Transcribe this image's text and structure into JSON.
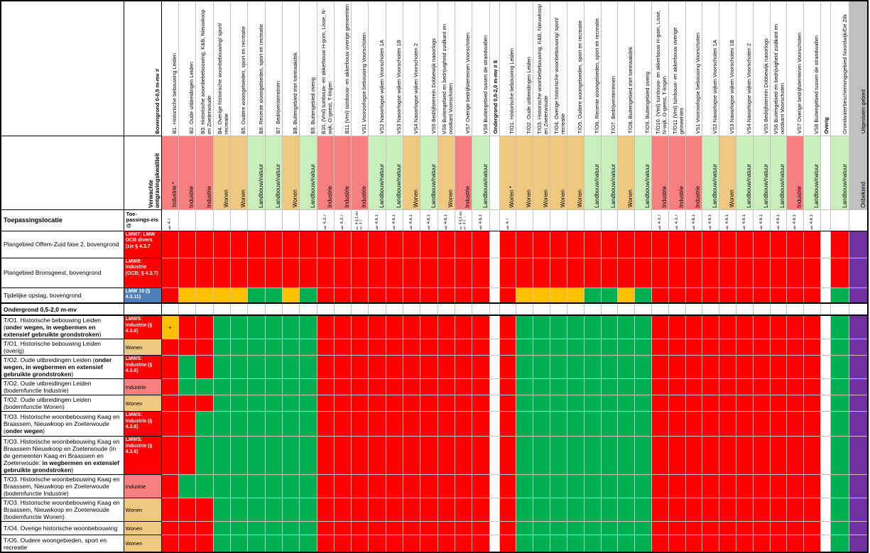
{
  "table": {
    "corner_label": "Toepassingslocatie",
    "eis_label": "Toe-passings-eis @",
    "bovengrond_header": "Bovengrond 0-0,5 m-mv #",
    "quality_header": "Verwachte ontgravingskwaliteit",
    "ondergrond_header": "Ondergrond 0,5-2,0 m-mv # $",
    "overig_header": "Overig"
  },
  "colors": {
    "R": "#FF0000",
    "G": "#00B050",
    "O": "#FFC000",
    "P": "#7030A0",
    "B": "#4E7FBA",
    "i": "#F5807F",
    "w": "#EFC880",
    "n": "#C9EFBC",
    "u": "#BFBFBF"
  },
  "columns": {
    "bovengrond": [
      {
        "l": "B1. Historische bebouwing Leiden",
        "qt": "Industrie *",
        "q": "i",
        "e": "§ 4.7"
      },
      {
        "l": "B2. Oude uitbreidingen Leiden",
        "qt": "Industrie",
        "q": "i",
        "e": ""
      },
      {
        "l": "B3. Historische woonbebebouwing, K&B, Nieuwkoop en Zoeterwoude",
        "qt": "Industrie",
        "q": "i",
        "e": ""
      },
      {
        "l": "B4. Overige historische woonbebouwing/ sport/ recreatie",
        "qt": "Wonen",
        "q": "w",
        "e": ""
      },
      {
        "l": "B5. Oudere woongebieden, sport en recreatie",
        "qt": "Wonen",
        "q": "w",
        "e": ""
      },
      {
        "l": "B6. Recente woongebieden, sport en recreatie",
        "qt": "Landbouw/natuur",
        "q": "n",
        "e": ""
      },
      {
        "l": "B7. Bedrijventerreinen",
        "qt": "Landbouw/natuur",
        "q": "n",
        "e": ""
      },
      {
        "l": "B8. Buitengebied met toemaakdek",
        "qt": "Wonen",
        "q": "w",
        "e": ""
      },
      {
        "l": "B9. Buitengebied overig",
        "qt": "Landbouw/natuur",
        "q": "n",
        "e": ""
      },
      {
        "l": "B10. (Vml) tuinbouw- en akkerbouw H-gom, Lisse, N-wijk, O-geest, T-lingen",
        "qt": "Industrie",
        "q": "i",
        "e": "§ 4.3.7"
      },
      {
        "l": "B11 (Vml) tuinbouw- en akkerbouw overige gemeenten",
        "qt": "Industrie",
        "q": "i",
        "e": "§ 4.3.7"
      },
      {
        "l": "VS1 Vooroorlogse bebouwing Voorschoten",
        "qt": "Industrie",
        "q": "i",
        "e": "§ 4.6.1 en|§ 4.7"
      },
      {
        "l": "VS2 Naoorlogse wijken Voorschoten 1A",
        "qt": "Landbouw/natuur",
        "q": "n",
        "e": "§ 4.6.1"
      },
      {
        "l": "VS3 Naoorlogse wijken Voorschoten 1B",
        "qt": "Landbouw/natuur",
        "q": "n",
        "e": "§ 4.6.1"
      },
      {
        "l": "VS4 Naoorlogse wijken Voorschoten 2",
        "qt": "Wonen",
        "q": "w",
        "e": "§ 4.6.1"
      },
      {
        "l": "VS5 Bedrijfsterrein Dobbewijk naoorlogs",
        "qt": "Landbouw/natuur",
        "q": "n",
        "e": "§ 4.6.1"
      },
      {
        "l": "VS6 Buitengebied en bedrijvigheid zuidkant en oostkant Voorschoten",
        "qt": "Wonen",
        "q": "w",
        "e": "§ 4.6.1"
      },
      {
        "l": "VS7 Overige bedrijfsterreinen Voorschoten",
        "qt": "Industrie",
        "q": "i",
        "e": "§ 4.6.1 en|§ 4.7"
      },
      {
        "l": "VS8 Buitengebied tussen de strandwallen",
        "qt": "Landbouw/natuur",
        "q": "n",
        "e": "§ 4.6.1"
      }
    ],
    "ondergrond": [
      {
        "l": "T/O1. Historische bebouwing Leiden",
        "qt": "Wonen *",
        "q": "w",
        "e": "§ 4.7"
      },
      {
        "l": "T/O2. Oude uitbreidingen Leiden",
        "qt": "Wonen",
        "q": "w",
        "e": ""
      },
      {
        "l": "T/O3. Historische woonbebebouwing, K&B, Nieuwkoop en Zoeterwoude",
        "qt": "Wonen",
        "q": "w",
        "e": ""
      },
      {
        "l": "T/O4. Overige historische woonbebouwing/ sport/ recreatie",
        "qt": "Wonen",
        "q": "w",
        "e": ""
      },
      {
        "l": "T/O5. Oudere woongebieden, sport en recreatie",
        "qt": "Wonen",
        "q": "w",
        "e": ""
      },
      {
        "l": "T/O6. Recente woongebieden, sport en recreatie",
        "qt": "Landbouw/natuur",
        "q": "n",
        "e": ""
      },
      {
        "l": "T/O7. Bedrijventerreinen",
        "qt": "Landbouw/natuur",
        "q": "n",
        "e": ""
      },
      {
        "l": "T/O8. Buitengebied met toemaakdek",
        "qt": "Wonen",
        "q": "w",
        "e": ""
      },
      {
        "l": "T/O9. Buitengebied overig",
        "qt": "Landbouw/natuur",
        "q": "n",
        "e": ""
      },
      {
        "l": "T/O10. (Vml) tuinbouw- en akkerbouw H-gom, Lisse, N-wijk, O-geest, T-lingen",
        "qt": "Industrie",
        "q": "i",
        "e": "§ 4.3.7"
      },
      {
        "l": "T/O11 (Vml) tuinbouw- en akkerbouw overige gemeenten",
        "qt": "Industrie",
        "q": "i",
        "e": "§ 4.3.7"
      },
      {
        "l": "VS1 Vooroorlogse bebouwing Voorschoten",
        "qt": "Industrie",
        "q": "i",
        "e": "§ 4.6.1"
      },
      {
        "l": "VS2 Naoorlogse wijken Voorschoten 1A",
        "qt": "Landbouw/natuur",
        "q": "n",
        "e": "§ 4.6.1"
      },
      {
        "l": "VS3 Naoorlogse wijken Voorschoten 1B",
        "qt": "Wonen",
        "q": "w",
        "e": "§ 4.6.1"
      },
      {
        "l": "VS4 Naoorlogse wijken Voorschoten 2",
        "qt": "Landbouw/natuur",
        "q": "n",
        "e": "§ 4.6.1"
      },
      {
        "l": "VS5 Bedrijfsterrein Dobbewijk naoorlogs",
        "qt": "Landbouw/natuur",
        "q": "n",
        "e": "§ 4.6.1"
      },
      {
        "l": "VS6 Buitengebied en bedrijvigheid zuidkant en oostkant Voorschoten",
        "qt": "Landbouw/natuur",
        "q": "n",
        "e": "§ 4.6.1"
      },
      {
        "l": "VS7 Overige bedrijfsterreinen Voorschoten",
        "qt": "Industrie",
        "q": "i",
        "e": "§ 4.6.1"
      },
      {
        "l": "VS8 Buitengebied tussen de strandwallen",
        "qt": "Landbouw/natuur",
        "q": "n",
        "e": "§ 4.6.1"
      }
    ],
    "overig": [
      {
        "l": "Grondwaterbeschermingsgebied Noordwijk/De Zilk",
        "qt": "Landbouw/natuur",
        "q": "n",
        "e": ""
      },
      {
        "l": "Uitgesloten gebied",
        "qt": "Onbekend",
        "q": "u",
        "e": "",
        "hb": "u"
      }
    ]
  },
  "rows": [
    {
      "h": 38,
      "label": [
        [
          "Plangebied Offem-Zuid fase 2, bovengrond",
          0
        ]
      ],
      "eis": {
        "t": "LMW7: LMW OCB divers (zie § 4.3.7",
        "bg": "R",
        "wh": true
      },
      "b": "RRRRRRRRRRRRRRRRRRR",
      "o": "RRRRRRRRRRRRRRRRRRR",
      "gw": "R",
      "ug": "P"
    },
    {
      "h": 42,
      "label": [
        [
          "Plangebied Bronsgeest, bovengrond",
          0
        ]
      ],
      "eis": {
        "t": "LMW8: Industrie (OCB; § 4.3.7)",
        "bg": "R",
        "wh": true
      },
      "b": "RRRRRRRRRRRRRRRRRRR",
      "o": "RRRRRRRRRRRRRRRRRRR",
      "gw": "R",
      "ug": "P"
    },
    {
      "h": 22,
      "label": [
        [
          "Tijdelijke opslag, bovengrond",
          0
        ]
      ],
      "eis": {
        "t": "LMW 10 (§ 4.3.11)",
        "bg": "B",
        "wh": true
      },
      "b": "ROOOOGGOGRRRRRRRRRR",
      "o": "ROOOOGGOGRRRRRRRRRR",
      "gw": "G",
      "ug": "P"
    },
    {
      "h": 17,
      "type": "section",
      "slabel": "Ondergrond 0,5-2,0 m-mv"
    },
    {
      "h": 33,
      "label": [
        [
          "T/O1. Historische bebouwing Leiden (",
          0
        ],
        [
          "onder wegen, in wegbermen en extensief gebruikte grondstroken",
          1
        ],
        [
          ")",
          0
        ]
      ],
      "eis": {
        "t": "LMWS: Industrie (§ 4.3.6)",
        "bg": "R",
        "wh": true
      },
      "b": "+RRGGGGGGRRRRRRRRRR",
      "o": "RGGGGGGGGRRRRRRRRRR",
      "gw": "G",
      "ug": "P"
    },
    {
      "h": 19,
      "label": [
        [
          "T/O1. Historische bebouwing Leiden (overig)",
          0
        ]
      ],
      "eis": {
        "t": "Wonen",
        "bg": "w"
      },
      "b": "RRRGGGGGGRRRRRRRRRR",
      "o": "RGGGGGGGGRRRRRRRRRR",
      "gw": "G",
      "ug": "P"
    },
    {
      "h": 33,
      "label": [
        [
          "T/O2. Oude uitbreidingen Leiden (",
          0
        ],
        [
          "onder wegen, in wegbermen en extensief gebruikte grondstroken",
          1
        ],
        [
          ")",
          0
        ]
      ],
      "eis": {
        "t": "LMWS: Industrie (§ 4.3.6)",
        "bg": "R",
        "wh": true
      },
      "b": "RGRGGGGGGRRRRRRRRRR",
      "o": "RGGGGGGGGRRRRRRRRRR",
      "gw": "G",
      "ug": "P"
    },
    {
      "h": 22,
      "label": [
        [
          "T/O2. Oude uitbreidingen Leiden (bodemfunctie Industrie)",
          0
        ]
      ],
      "eis": {
        "t": "Industrie",
        "bg": "i"
      },
      "b": "RGGGGGGGGRRRRRRRRRR",
      "o": "RGGGGGGGGRRRRRRRRRR",
      "gw": "G",
      "ug": "P"
    },
    {
      "h": 19,
      "label": [
        [
          "T/O2. Oude uitbreidingen Leiden (bodemfunctie Wonen)",
          0
        ]
      ],
      "eis": {
        "t": "Wonen",
        "bg": "w"
      },
      "b": "RRRGGGGGGRRRRRRRRRR",
      "o": "RGGGGGGGGRRRRRRRRRR",
      "gw": "G",
      "ug": "P"
    },
    {
      "h": 35,
      "label": [
        [
          "T/O3. Historische woonbebouwing Kaag en Braassem, Nieuwkoop en Zoeterwoude (",
          0
        ],
        [
          "onder wegen",
          1
        ],
        [
          ")",
          0
        ]
      ],
      "eis": {
        "t": "LMWS: Industrie (§ 4.3.6)",
        "bg": "R",
        "wh": true
      },
      "b": "RRGGGGGGGRRRRRRRRRR",
      "o": "RGGGGGGGGRRRRRRRRRR",
      "gw": "G",
      "ug": "P"
    },
    {
      "h": 54,
      "label": [
        [
          "T/O3. Historische woonbebouwing Kaag en Braassem Nieuwkoop en Zoeterwoude (in de gemeenten Kaag en Braassem en Zoeterwoude: ",
          0
        ],
        [
          "in wegbermen en extensief gebruikte grondstroken",
          1
        ],
        [
          ")",
          0
        ]
      ],
      "eis": {
        "t": "LMWS: Industrie (§ 4.3.6)",
        "bg": "R",
        "wh": true
      },
      "b": "RRGGGGGGGRRRRRRRRRR",
      "o": "RGGGGGGGGRRRRRRRRRR",
      "gw": "G",
      "ug": "P"
    },
    {
      "h": 27,
      "label": [
        [
          "T/O3. Historische woonbebouwing Kaag en Braassem, Nieuwkoop en Zoeterwoude (bodemfunctie Industrie)",
          0
        ]
      ],
      "eis": {
        "t": "Industrie",
        "bg": "i"
      },
      "b": "RGGGGGGGGRRRRRRRRRR",
      "o": "RGGGGGGGGRRRRRRRRRR",
      "gw": "G",
      "ug": "P"
    },
    {
      "h": 33,
      "label": [
        [
          "T/O3. Historische woonbebouwing Kaag en Braassem, Nieuwkoop en Zoeterwoude (bodemfunctie Wonen)",
          0
        ]
      ],
      "eis": {
        "t": "Wonen",
        "bg": "w"
      },
      "b": "RRRGGGGGGRRRRRRRRRR",
      "o": "RGGGGGGGGRRRRRRRRRR",
      "gw": "G",
      "ug": "P"
    },
    {
      "h": 19,
      "label": [
        [
          "T/O4. Overige historische woonbebouwing",
          0
        ]
      ],
      "eis": {
        "t": "Wonen",
        "bg": "w"
      },
      "b": "RRRGGGGGGRRRRRRRRRR",
      "o": "RGGGGGGGGRRRRRRRRRR",
      "gw": "G",
      "ug": "P"
    },
    {
      "h": 24,
      "label": [
        [
          "T/O5. Oudere woongebieden, sport en recreatie",
          0
        ]
      ],
      "eis": {
        "t": "Wonen",
        "bg": "w"
      },
      "b": "RRRGGGGGGRRRRRRRRRR",
      "o": "RGGGGGGGGRRRRRRRRRR",
      "gw": "G",
      "ug": "P"
    }
  ]
}
